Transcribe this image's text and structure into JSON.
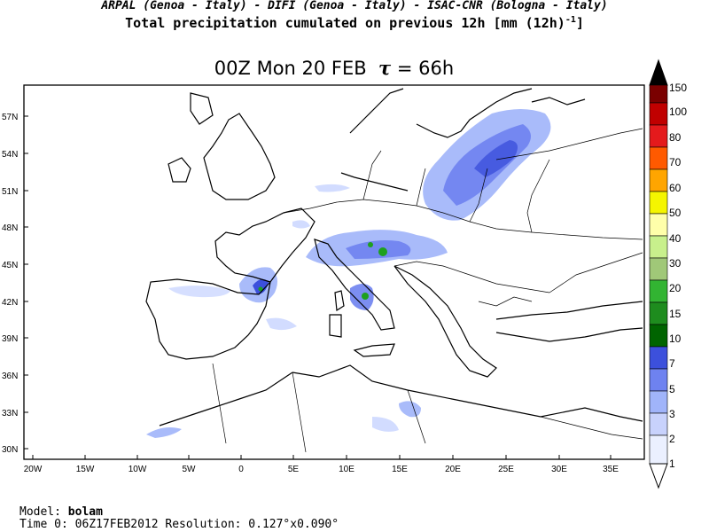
{
  "header": {
    "credits": "ARPAL (Genoa - Italy)  -  DIFI (Genoa - Italy)  -  ISAC-CNR (Bologna - Italy)",
    "title_main": "Total precipitation cumulated on previous 12h [mm (12h)",
    "title_sup": "-1",
    "title_end": "]"
  },
  "map": {
    "time_label": "00Z Mon 20 FEB",
    "tau_symbol": "τ",
    "tau_value": "= 66h",
    "lat_labels": [
      "57N",
      "54N",
      "51N",
      "48N",
      "45N",
      "42N",
      "39N",
      "36N",
      "33N",
      "30N"
    ],
    "lon_labels": [
      "20W",
      "15W",
      "10W",
      "5W",
      "0",
      "5E",
      "10E",
      "15E",
      "20E",
      "25E",
      "30E",
      "35E"
    ]
  },
  "legend": {
    "labels": [
      "150",
      "100",
      "80",
      "70",
      "60",
      "50",
      "40",
      "30",
      "20",
      "15",
      "10",
      "7",
      "5",
      "3",
      "2",
      "1"
    ],
    "colors": [
      "#000000",
      "#7a0000",
      "#c00000",
      "#ff2a00",
      "#ff8a00",
      "#ffc800",
      "#ffff00",
      "#ffffb0",
      "#c8f08c",
      "#8cc86e",
      "#1ea01e",
      "#006e00",
      "#3c50dc",
      "#6e82f0",
      "#a0b4fa",
      "#d2dcff",
      "#ebf0ff"
    ]
  },
  "footer": {
    "model_label": "Model:",
    "model_value": "bolam",
    "time0_label": "Time 0:",
    "time0_value": "06Z17FEB2012",
    "resolution_label": "Resolution:",
    "resolution_value": "0.127°x0.090°"
  }
}
